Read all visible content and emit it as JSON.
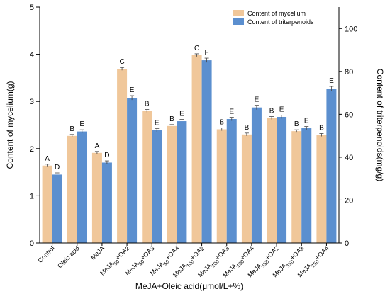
{
  "chart_data": {
    "type": "bar",
    "categories": [
      {
        "main": "Control",
        "sub": "",
        "tail": ""
      },
      {
        "main": "Oleic acid",
        "sub": "",
        "tail": ""
      },
      {
        "main": "MeJA",
        "sub": "",
        "tail": ""
      },
      {
        "main": "MeJA",
        "sub": "50",
        "tail": "+OA2"
      },
      {
        "main": "MeJA",
        "sub": "50",
        "tail": "+OA3"
      },
      {
        "main": "MeJA",
        "sub": "50",
        "tail": "+OA4"
      },
      {
        "main": "MeJA",
        "sub": "100",
        "tail": "+OA2"
      },
      {
        "main": "MeJA",
        "sub": "100",
        "tail": "+OA3"
      },
      {
        "main": "MeJA",
        "sub": "100",
        "tail": "+OA4"
      },
      {
        "main": "MeJA",
        "sub": "150",
        "tail": "+OA2"
      },
      {
        "main": "MeJA",
        "sub": "150",
        "tail": "+OA3"
      },
      {
        "main": "MeJA",
        "sub": "150",
        "tail": "+OA4"
      }
    ],
    "series": [
      {
        "name": "Content of mycelium",
        "axis": "left",
        "color": "#f0c79a",
        "values": [
          1.64,
          2.27,
          1.91,
          3.69,
          2.8,
          2.48,
          3.98,
          2.41,
          2.3,
          2.65,
          2.37,
          2.29
        ],
        "errors": [
          0.03,
          0.03,
          0.03,
          0.03,
          0.03,
          0.03,
          0.03,
          0.03,
          0.03,
          0.03,
          0.03,
          0.03
        ],
        "letters": [
          "A",
          "B",
          "A",
          "C",
          "B",
          "B",
          "C",
          "B",
          "B",
          "B",
          "B",
          "B"
        ]
      },
      {
        "name": "Content of triterpenoids",
        "axis": "right",
        "color": "#5b8fcf",
        "values": [
          31.9,
          52.0,
          37.5,
          67.7,
          52.6,
          56.8,
          85.2,
          57.8,
          63.2,
          58.8,
          53.5,
          72.0
        ],
        "errors": [
          0.8,
          0.8,
          0.8,
          1.0,
          0.8,
          0.8,
          1.0,
          0.8,
          1.0,
          0.8,
          0.8,
          1.0
        ],
        "letters": [
          "D",
          "E",
          "D",
          "E",
          "E",
          "E",
          "F",
          "E",
          "E",
          "E",
          "E",
          "E"
        ]
      }
    ],
    "xlabel": "MeJA+Oleic acid(μmol/L+%)",
    "ylabel_left": "Content of mycelium(g)",
    "ylabel_right": "Content of triterpenoids(mg/g)",
    "ylim_left": [
      0,
      5
    ],
    "ylim_right": [
      0,
      110
    ],
    "yticks_left": [
      0,
      1,
      2,
      3,
      4,
      5
    ],
    "yticks_right": [
      0,
      20,
      40,
      60,
      80,
      100
    ],
    "legend_position": "top-right",
    "grid": false
  }
}
